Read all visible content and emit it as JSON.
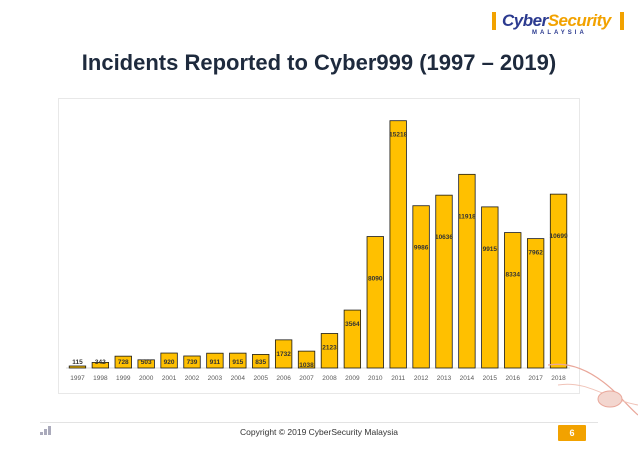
{
  "logo": {
    "brand_main": "CyberSecurity",
    "brand_sub": "MALAYSIA"
  },
  "page_title": "Incidents Reported to Cyber999 (1997 – 2019)",
  "footer": {
    "copyright": "Copyright © 2019 CyberSecurity Malaysia",
    "page_number": "6"
  },
  "colors": {
    "bar": "#ffc000",
    "bar_stroke": "#1a1a1a",
    "accent": "#f2a200",
    "logo_blue": "#2b3a8f"
  },
  "chart_data": {
    "type": "bar",
    "title": "",
    "xlabel": "",
    "ylabel": "",
    "categories": [
      "1997",
      "1998",
      "1999",
      "2000",
      "2001",
      "2002",
      "2003",
      "2004",
      "2005",
      "2006",
      "2007",
      "2008",
      "2009",
      "2010",
      "2011",
      "2012",
      "2013",
      "2014",
      "2015",
      "2016",
      "2017",
      "2018"
    ],
    "values": [
      115,
      342,
      728,
      503,
      920,
      739,
      911,
      915,
      835,
      1732,
      1038,
      2123,
      3564,
      8090,
      15218,
      9986,
      10636,
      11918,
      9915,
      8334,
      7962,
      10699
    ],
    "data_labels": [
      "115",
      "342",
      "728",
      "503",
      "920",
      "739",
      "911",
      "915",
      "835",
      "1732",
      "1038",
      "2123",
      "3564",
      "8090",
      "15218",
      "9986",
      "10636",
      "11918",
      "9915",
      "8334",
      "7962",
      "10699"
    ],
    "ylim": [
      0,
      16000
    ],
    "grid": false,
    "legend": "none"
  }
}
